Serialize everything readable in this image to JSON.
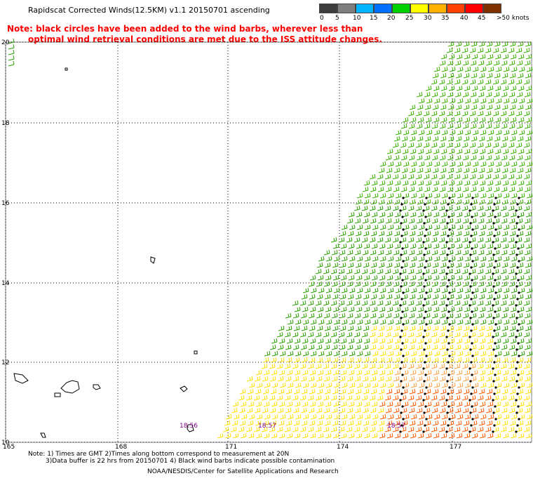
{
  "title": "Rapidscat Corrected Winds(12.5KM) v1.1 20150701 ascending",
  "note_line1": "Note: black circles have been added to the wind barbs, wherever less than",
  "note_line2": "optimal wind retrieval conditions are met due to the ISS attitude changes.",
  "scale": {
    "colors": [
      "#3c3c3c",
      "#7f7f7f",
      "#00b4ff",
      "#0070ff",
      "#00d000",
      "#ffff00",
      "#ffb000",
      "#ff4000",
      "#ff0000",
      "#7f3000",
      "#b000b0",
      "#ff00ff",
      "#400080"
    ],
    "labels": [
      "0",
      "5",
      "10",
      "15",
      "20",
      "25",
      "30",
      "35",
      "40",
      "45",
      ">50 knots"
    ]
  },
  "lat_labels": [
    "20",
    "18",
    "16",
    "14",
    "12",
    "10"
  ],
  "lon_labels": [
    "165",
    "168",
    "171",
    "174",
    "177"
  ],
  "time_labels": [
    "18:56",
    "18:57",
    "18:57"
  ],
  "footer_line1": "Note: 1) Times are GMT 2)Times along bottom correspond to measurement at 20N",
  "footer_line2": "3)Data buffer is 22 hrs from 20150701 4) Black wind barbs indicate possible contamination",
  "footer_line3": "NOAA/NESDIS/Center for Satellite Applications and Research"
}
